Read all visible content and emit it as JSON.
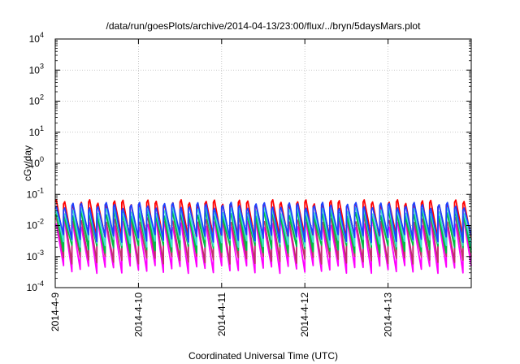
{
  "chart_data": {
    "type": "line",
    "title": "/data/run/goesPlots/archive/2014-04-13/23:00/flux/../bryn/5daysMars.plot",
    "xlabel": "Coordinated Universal Time (UTC)",
    "ylabel": "cGy/day",
    "y_scale": "log",
    "ylim_exponents": [
      -4,
      4
    ],
    "y_tick_labels": [
      {
        "base": "10",
        "exp": "-4"
      },
      {
        "base": "10",
        "exp": "-3"
      },
      {
        "base": "10",
        "exp": "-2"
      },
      {
        "base": "10",
        "exp": "-1"
      },
      {
        "base": "10",
        "exp": "0"
      },
      {
        "base": "10",
        "exp": "1"
      },
      {
        "base": "10",
        "exp": "2"
      },
      {
        "base": "10",
        "exp": "3"
      },
      {
        "base": "10",
        "exp": "4"
      }
    ],
    "x_tick_labels": [
      "2014-4-9",
      "2014-4-10",
      "2014-4-11",
      "2014-4-12",
      "2014-4-13"
    ],
    "xlim_days": [
      0,
      5
    ],
    "grid": true,
    "legend": "none",
    "cycles_per_day": 10,
    "series": [
      {
        "color": "#ff00ff",
        "peak": 0.011,
        "trough": 0.0004
      },
      {
        "color": "#c0306a",
        "peak": 0.016,
        "trough": 0.0008
      },
      {
        "color": "#ff0000",
        "peak": 0.055,
        "trough": 0.0035
      },
      {
        "color": "#00a0a0",
        "peak": 0.025,
        "trough": 0.0022
      },
      {
        "color": "#00c040",
        "peak": 0.02,
        "trough": 0.0018
      },
      {
        "color": "#40e0d0",
        "peak": 0.03,
        "trough": 0.0028
      },
      {
        "color": "#1e40ff",
        "peak": 0.045,
        "trough": 0.004
      }
    ]
  }
}
